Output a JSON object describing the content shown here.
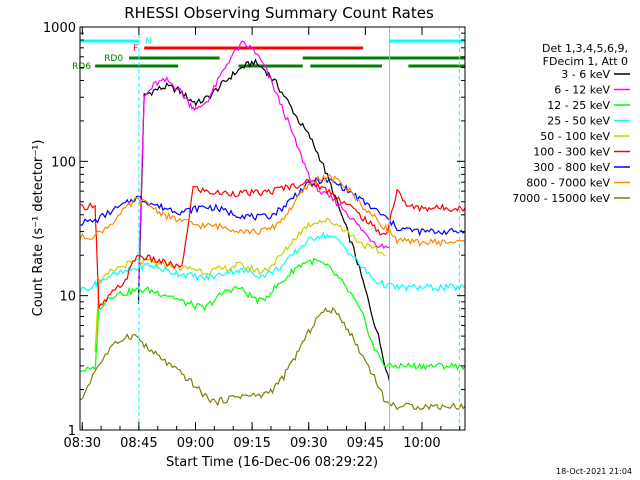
{
  "chart_data": {
    "type": "line",
    "title": "RHESSI Observing Summary Count Rates",
    "xlabel": "Start Time (16-Dec-06 08:29:22)",
    "ylabel": "Count Rate (s⁻¹ detector⁻¹)",
    "y_scale": "log",
    "ylim": [
      1,
      1000
    ],
    "xlim_minutes": [
      0,
      102
    ],
    "x_tick_labels": [
      "08:30",
      "08:45",
      "09:00",
      "09:15",
      "09:30",
      "09:45",
      "10:00"
    ],
    "x_tick_minutes": [
      0.6,
      15.6,
      30.6,
      45.6,
      60.6,
      75.6,
      90.6
    ],
    "y_tick_labels": [
      "1",
      "10",
      "100",
      "1000"
    ],
    "grid": false,
    "legend_position": "right",
    "legend_header": [
      "Det 1,3,4,5,6,9,",
      "FDecim 1, Att 0"
    ],
    "footer_date": "18-Oct-2021 21:04",
    "series": [
      {
        "name": "3 - 6 keV",
        "color": "#000000",
        "x": [
          15.5,
          17,
          20,
          23,
          26,
          29,
          31,
          34,
          37,
          40,
          43,
          46,
          49,
          52,
          55,
          58,
          61,
          64,
          67,
          70,
          73,
          76,
          79,
          82
        ],
        "y": [
          9,
          310,
          340,
          360,
          340,
          290,
          270,
          300,
          360,
          430,
          500,
          550,
          480,
          380,
          280,
          200,
          150,
          100,
          60,
          35,
          20,
          10,
          5,
          2.3
        ]
      },
      {
        "name": "6 - 12 keV",
        "color": "#ff00ff",
        "x": [
          15.5,
          17,
          20,
          23,
          26,
          29,
          31,
          34,
          37,
          40,
          43,
          46,
          49,
          52,
          55,
          58,
          61,
          64,
          67,
          70,
          73,
          76,
          79,
          82
        ],
        "y": [
          13,
          300,
          380,
          400,
          350,
          270,
          240,
          290,
          420,
          600,
          750,
          680,
          500,
          320,
          200,
          120,
          75,
          58,
          52,
          44,
          35,
          28,
          24,
          23
        ]
      },
      {
        "name": "12 - 25 keV",
        "color": "#00ff00",
        "x": [
          0,
          4,
          5,
          8,
          12,
          15,
          18,
          21,
          24,
          27,
          30,
          33,
          36,
          39,
          42,
          45,
          48,
          51,
          54,
          57,
          60,
          63,
          66,
          69,
          72,
          75,
          78,
          81,
          84,
          87,
          90,
          93,
          96,
          99,
          102
        ],
        "y": [
          2.8,
          2.8,
          8,
          10,
          10.5,
          11,
          11,
          10.5,
          10,
          9,
          8.5,
          8,
          9.5,
          11,
          11.5,
          10,
          9,
          11,
          13,
          16,
          18,
          18,
          16,
          13,
          10,
          7,
          4,
          3,
          3,
          3,
          3,
          3,
          3,
          3,
          3
        ]
      },
      {
        "name": "25 - 50 keV",
        "color": "#00ffff",
        "x": [
          0,
          4,
          5,
          8,
          12,
          15,
          18,
          21,
          24,
          27,
          30,
          33,
          36,
          39,
          42,
          45,
          48,
          51,
          54,
          57,
          60,
          63,
          66,
          69,
          72,
          75,
          78,
          81,
          84,
          87,
          90,
          93,
          96,
          99,
          102
        ],
        "y": [
          11,
          12,
          13,
          14,
          15,
          16,
          17,
          16,
          15,
          14.5,
          14,
          13.5,
          14,
          15,
          15.5,
          15,
          14,
          15,
          17,
          21,
          25,
          28,
          28,
          25,
          20,
          16,
          13,
          12,
          11.5,
          11.5,
          11.5,
          11.5,
          11.5,
          11.5,
          11.5
        ]
      },
      {
        "name": "50 - 100 keV",
        "color": "#cccc00",
        "x": [
          4,
          5,
          8,
          12,
          15,
          18,
          21,
          24,
          27,
          30,
          33,
          36,
          39,
          42,
          45,
          48,
          51,
          54,
          57,
          60,
          63,
          66,
          69,
          72,
          75,
          78,
          81
        ],
        "y": [
          4,
          12,
          15,
          17,
          18,
          18,
          17,
          17,
          16,
          16,
          15,
          15.5,
          16,
          17,
          16,
          15,
          17,
          21,
          27,
          33,
          36,
          36,
          33,
          28,
          24,
          22,
          20
        ]
      },
      {
        "name": "100 - 300 keV",
        "color": "#ff0000",
        "x": [
          0,
          4,
          5,
          8,
          12,
          15,
          18,
          21,
          24,
          27,
          30,
          33,
          36,
          39,
          42,
          45,
          48,
          51,
          54,
          57,
          60,
          63,
          66,
          69,
          72,
          75,
          78,
          81,
          84,
          87,
          90,
          93,
          96,
          99,
          102
        ],
        "y": [
          45,
          48,
          8,
          10,
          13,
          20,
          19,
          18,
          17,
          16,
          64,
          60,
          58,
          58,
          58,
          58,
          58,
          60,
          64,
          66,
          70,
          66,
          60,
          52,
          45,
          38,
          32,
          28,
          60,
          46,
          45,
          45,
          45,
          45,
          45
        ]
      },
      {
        "name": "300 - 800 keV",
        "color": "#0000ff",
        "x": [
          0,
          4,
          8,
          12,
          15,
          18,
          21,
          24,
          27,
          30,
          33,
          36,
          39,
          42,
          45,
          48,
          51,
          54,
          57,
          60,
          63,
          66,
          69,
          72,
          75,
          78,
          81,
          84,
          87,
          90,
          93,
          96,
          99,
          102
        ],
        "y": [
          35,
          36,
          42,
          48,
          54,
          50,
          46,
          44,
          42,
          44,
          46,
          45,
          42,
          40,
          39,
          38,
          40,
          46,
          56,
          66,
          72,
          72,
          66,
          58,
          50,
          44,
          38,
          32,
          31,
          30,
          30,
          30,
          30,
          30
        ]
      },
      {
        "name": "800 - 7000 keV",
        "color": "#ff8800",
        "x": [
          0,
          4,
          8,
          12,
          15,
          18,
          21,
          24,
          27,
          30,
          33,
          36,
          39,
          42,
          45,
          48,
          51,
          54,
          57,
          60,
          63,
          66,
          69,
          72,
          75,
          78,
          81,
          84,
          87,
          90,
          93,
          96,
          99,
          102
        ],
        "y": [
          27,
          28,
          34,
          44,
          52,
          48,
          42,
          38,
          36,
          34,
          33,
          33,
          32,
          31,
          30,
          30,
          32,
          38,
          50,
          64,
          74,
          76,
          70,
          58,
          46,
          38,
          32,
          26,
          25,
          25,
          25,
          25,
          25,
          25
        ]
      },
      {
        "name": "7000 - 15000 keV",
        "color": "#808000",
        "x": [
          0,
          4,
          8,
          12,
          15,
          18,
          21,
          24,
          27,
          30,
          33,
          36,
          39,
          42,
          45,
          48,
          51,
          54,
          57,
          60,
          63,
          66,
          69,
          72,
          75,
          78,
          81,
          84,
          87,
          90,
          93,
          96,
          99,
          102
        ],
        "y": [
          1.6,
          2.8,
          4,
          5,
          5,
          4,
          3.5,
          3,
          2.6,
          2.2,
          1.8,
          1.6,
          1.7,
          1.8,
          1.8,
          1.8,
          2,
          2.5,
          3.5,
          5,
          7,
          8,
          7,
          5,
          3.5,
          2.5,
          1.6,
          1.5,
          1.5,
          1.5,
          1.5,
          1.5,
          1.5,
          1.5
        ]
      }
    ],
    "annotations": [
      {
        "label": "N",
        "color": "#00ffff",
        "segments": [
          [
            0,
            15.6
          ],
          [
            82,
            102
          ]
        ]
      },
      {
        "label": "F",
        "color": "#ff0000",
        "segments": [
          [
            17,
            75
          ]
        ]
      },
      {
        "label": "RD0",
        "color": "#008000",
        "segments": [
          [
            13,
            37
          ],
          [
            59,
            102
          ]
        ]
      },
      {
        "label": "RD6",
        "color": "#008000",
        "segments": [
          [
            4,
            26
          ],
          [
            42,
            59
          ],
          [
            61,
            80
          ],
          [
            87,
            102
          ]
        ]
      }
    ],
    "vertical_markers": [
      {
        "x": 0,
        "color": "#00ffff",
        "style": "solid"
      },
      {
        "x": 15.6,
        "color": "#00ffff",
        "style": "dashed"
      },
      {
        "x": 82,
        "color": "#00ffff",
        "style": "solid"
      },
      {
        "x": 100.5,
        "color": "#00ffff",
        "style": "dashed"
      }
    ]
  }
}
